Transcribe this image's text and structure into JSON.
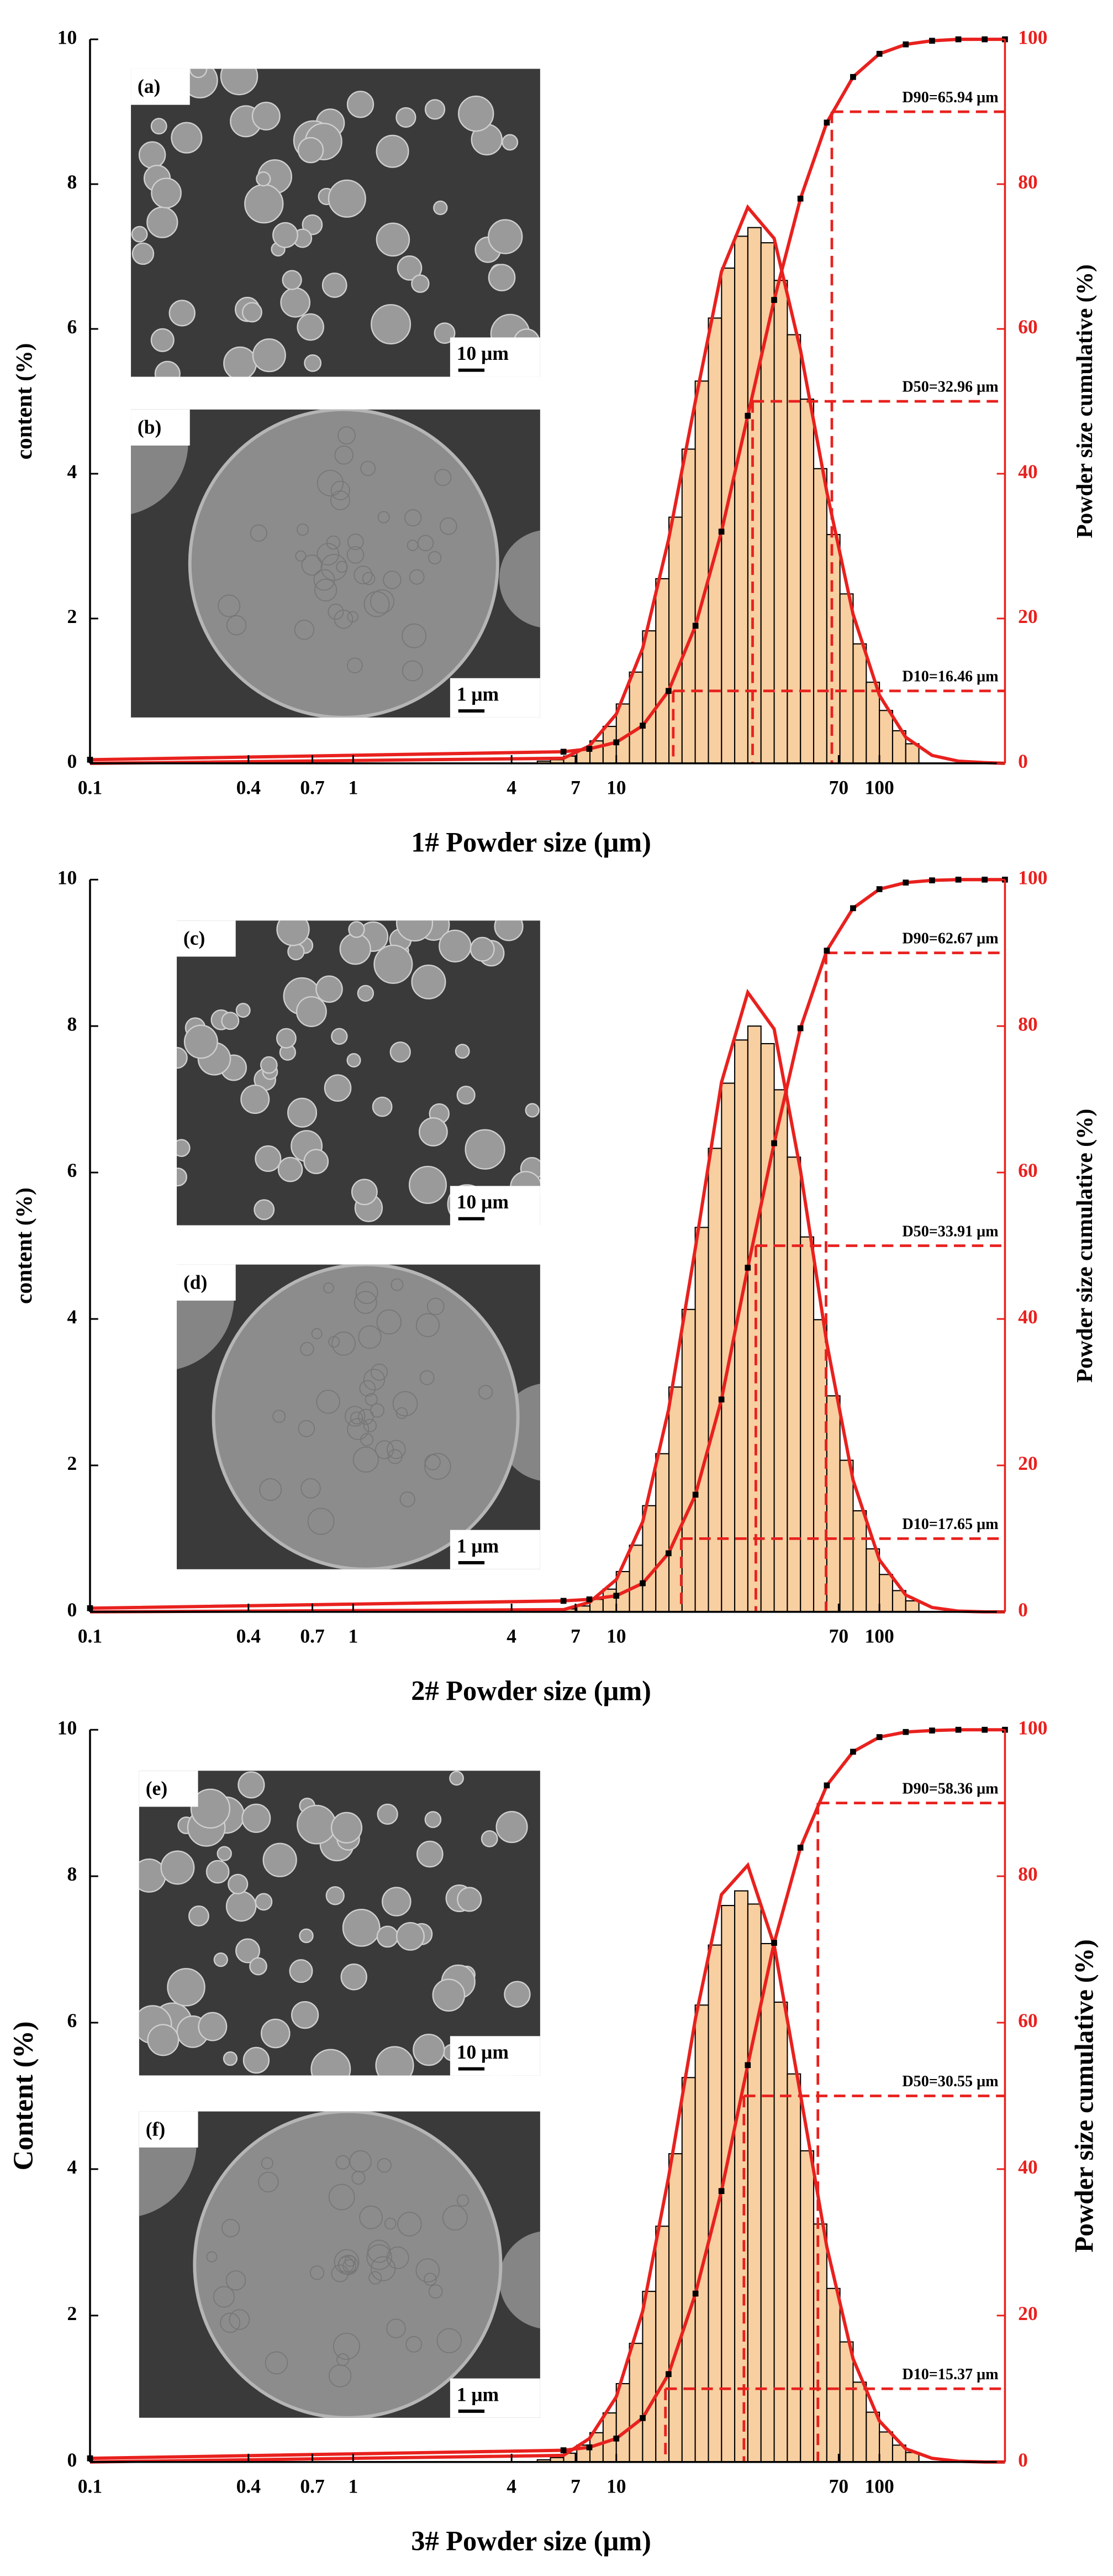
{
  "chart_data": [
    {
      "type": "histogram",
      "xlabel": "1# Powder size (μm)",
      "ylabel": "content (%)",
      "y2label": "Powder size cumulative (%)",
      "xscale": "log",
      "xlim": [
        0.1,
        300
      ],
      "xticks": [
        0.1,
        0.4,
        0.7,
        1,
        4,
        7,
        10,
        70,
        100
      ],
      "ylim": [
        0,
        10
      ],
      "yticks": [
        0,
        2,
        4,
        6,
        8,
        10
      ],
      "y2lim": [
        0,
        100
      ],
      "y2ticks": [
        0,
        20,
        40,
        60,
        80,
        100
      ],
      "color": "#f8cfa0",
      "edgecolor": "#000000",
      "bins": [
        5.01,
        5.62,
        6.31,
        7.08,
        7.94,
        8.91,
        10,
        11.22,
        12.59,
        14.13,
        15.85,
        17.78,
        19.95,
        22.39,
        25.12,
        28.18,
        31.62,
        35.48,
        39.81,
        44.67,
        50.12,
        56.23,
        63.1,
        70.79,
        79.43,
        89.13,
        100,
        112.2,
        125.89,
        141.25
      ],
      "counts": [
        0.03,
        0.05,
        0.1,
        0.18,
        0.31,
        0.51,
        0.82,
        1.26,
        1.83,
        2.55,
        3.4,
        4.34,
        5.28,
        6.15,
        6.84,
        7.28,
        7.4,
        7.19,
        6.67,
        5.92,
        5.03,
        4.07,
        3.16,
        2.34,
        1.65,
        1.12,
        0.73,
        0.45,
        0.27
      ],
      "series": [
        {
          "color": "#e8211e",
          "x": [
            0.1,
            6.3,
            7.9,
            10,
            12.6,
            15.8,
            20,
            25.1,
            31.6,
            39.8,
            50.1,
            63.1,
            79.4,
            100,
            125.9,
            158.5,
            199.5,
            251.2,
            300
          ],
          "values": [
            0,
            0.07,
            0.24,
            0.68,
            1.59,
            3.09,
            5.01,
            6.79,
            7.68,
            7.25,
            5.71,
            3.75,
            2.06,
            0.94,
            0.36,
            0.11,
            0.03,
            0.01,
            0
          ]
        },
        {
          "color": "#e8211e",
          "marker_color": "#000000",
          "axis": "y2",
          "x": [
            0.1,
            6.3,
            7.9,
            10,
            12.6,
            15.8,
            20,
            25.1,
            31.6,
            39.8,
            50.1,
            63.1,
            79.4,
            100,
            125.9,
            158.5,
            199.5,
            251.2,
            300
          ],
          "values": [
            0.5,
            1.6,
            2,
            2.9,
            5.2,
            10,
            19,
            32,
            48,
            64,
            78,
            88.5,
            94.8,
            98,
            99.3,
            99.8,
            100,
            100,
            100
          ]
        }
      ],
      "annotations": [
        {
          "text": "D90=65.94 μm",
          "x": 65.94,
          "y": 90
        },
        {
          "text": "D50=32.96 μm",
          "x": 32.96,
          "y": 50
        },
        {
          "text": "D10=16.46 μm",
          "x": 16.46,
          "y": 10
        }
      ],
      "insets": [
        {
          "label": "(a)",
          "scale": "10 μm"
        },
        {
          "label": "(b)",
          "scale": "1 μm"
        }
      ]
    },
    {
      "type": "histogram",
      "xlabel": "2# Powder size (μm)",
      "ylabel": "content (%)",
      "y2label": "Powder size cumulative (%)",
      "xscale": "log",
      "xlim": [
        0.1,
        300
      ],
      "xticks": [
        0.1,
        0.4,
        0.7,
        1,
        4,
        7,
        10,
        70,
        100
      ],
      "ylim": [
        0,
        10
      ],
      "yticks": [
        0,
        2,
        4,
        6,
        8,
        10
      ],
      "y2lim": [
        0,
        100
      ],
      "y2ticks": [
        0,
        20,
        40,
        60,
        80,
        100
      ],
      "color": "#f8cfa0",
      "edgecolor": "#000000",
      "bins": [
        5.01,
        5.62,
        6.31,
        7.08,
        7.94,
        8.91,
        10,
        11.22,
        12.59,
        14.13,
        15.85,
        17.78,
        19.95,
        22.39,
        25.12,
        28.18,
        31.62,
        35.48,
        39.81,
        44.67,
        50.12,
        56.23,
        63.1,
        70.79,
        79.43,
        89.13,
        100,
        112.2,
        125.89,
        141.25
      ],
      "counts": [
        0.01,
        0.02,
        0.04,
        0.08,
        0.17,
        0.31,
        0.55,
        0.91,
        1.45,
        2.16,
        3.07,
        4.13,
        5.25,
        6.33,
        7.22,
        7.81,
        8,
        7.76,
        7.13,
        6.21,
        5.12,
        3.99,
        2.95,
        2.07,
        1.38,
        0.86,
        0.51,
        0.29,
        0.15
      ],
      "series": [
        {
          "color": "#e8211e",
          "x": [
            0.1,
            6.3,
            7.9,
            10,
            12.6,
            15.8,
            20,
            25.1,
            31.6,
            39.8,
            50.1,
            63.1,
            79.4,
            100,
            125.9,
            158.5,
            199.5,
            251.2,
            300
          ],
          "values": [
            0,
            0.03,
            0.13,
            0.44,
            1.23,
            2.76,
            4.98,
            7.23,
            8.46,
            7.96,
            6.03,
            3.67,
            1.8,
            0.71,
            0.23,
            0.06,
            0.01,
            0,
            0
          ]
        },
        {
          "color": "#e8211e",
          "marker_color": "#000000",
          "axis": "y2",
          "x": [
            0.1,
            6.3,
            7.9,
            10,
            12.6,
            15.8,
            20,
            25.1,
            31.6,
            39.8,
            50.1,
            63.1,
            79.4,
            100,
            125.9,
            158.5,
            199.5,
            251.2,
            300
          ],
          "values": [
            0.5,
            1.5,
            1.7,
            2.2,
            3.9,
            8,
            16,
            29,
            47,
            64,
            79.7,
            90.3,
            96.1,
            98.7,
            99.6,
            99.9,
            100,
            100,
            100
          ]
        }
      ],
      "annotations": [
        {
          "text": "D90=62.67 μm",
          "x": 62.67,
          "y": 90
        },
        {
          "text": "D50=33.91 μm",
          "x": 33.91,
          "y": 50
        },
        {
          "text": "D10=17.65 μm",
          "x": 17.65,
          "y": 10
        }
      ],
      "insets": [
        {
          "label": "(c)",
          "scale": "10 μm"
        },
        {
          "label": "(d)",
          "scale": "1 μm"
        }
      ]
    },
    {
      "type": "histogram",
      "xlabel": "3# Powder size (μm)",
      "ylabel": "Content (%)",
      "y2label": "Powder size cumulative (%)",
      "xscale": "log",
      "xlim": [
        0.1,
        300
      ],
      "xticks": [
        0.1,
        0.4,
        0.7,
        1,
        4,
        7,
        10,
        70,
        100
      ],
      "ylim": [
        0,
        10
      ],
      "yticks": [
        0,
        2,
        4,
        6,
        8,
        10
      ],
      "y2lim": [
        0,
        100
      ],
      "y2ticks": [
        0,
        20,
        40,
        60,
        80,
        100
      ],
      "color": "#f8cfa0",
      "edgecolor": "#000000",
      "bins": [
        5.01,
        5.62,
        6.31,
        7.08,
        7.94,
        8.91,
        10,
        11.22,
        12.59,
        14.13,
        15.85,
        17.78,
        19.95,
        22.39,
        25.12,
        28.18,
        31.62,
        35.48,
        39.81,
        44.67,
        50.12,
        56.23,
        63.1,
        70.79,
        79.43,
        89.13,
        100,
        112.2,
        125.89,
        141.25
      ],
      "counts": [
        0.03,
        0.06,
        0.12,
        0.23,
        0.4,
        0.67,
        1.07,
        1.62,
        2.33,
        3.22,
        4.21,
        5.25,
        6.24,
        7.06,
        7.6,
        7.8,
        7.62,
        7.08,
        6.28,
        5.3,
        4.25,
        3.25,
        2.37,
        1.64,
        1.09,
        0.68,
        0.41,
        0.23,
        0.13
      ],
      "series": [
        {
          "color": "#e8211e",
          "x": [
            0.1,
            6.3,
            7.9,
            10,
            12.6,
            15.8,
            20,
            25.1,
            31.6,
            39.8,
            50.1,
            63.1,
            79.4,
            100,
            125.9,
            158.5,
            199.5,
            251.2,
            300
          ],
          "values": [
            0,
            0.09,
            0.32,
            0.89,
            2.06,
            3.89,
            6.06,
            7.75,
            8.15,
            7.06,
            5.02,
            2.94,
            1.41,
            0.56,
            0.18,
            0.05,
            0.01,
            0,
            0
          ]
        },
        {
          "color": "#e8211e",
          "marker_color": "#000000",
          "axis": "y2",
          "x": [
            0.1,
            6.3,
            7.9,
            10,
            12.6,
            15.8,
            20,
            25.1,
            31.6,
            39.8,
            50.1,
            63.1,
            79.4,
            100,
            125.9,
            158.5,
            199.5,
            251.2,
            300
          ],
          "values": [
            0.5,
            1.6,
            2,
            3.2,
            6,
            12,
            23,
            37,
            54.2,
            70.9,
            83.9,
            92.4,
            97,
            99,
            99.7,
            99.9,
            100,
            100,
            100
          ]
        }
      ],
      "annotations": [
        {
          "text": "D90=58.36 μm",
          "x": 58.36,
          "y": 90
        },
        {
          "text": "D50=30.55 μm",
          "x": 30.55,
          "y": 50
        },
        {
          "text": "D10=15.37 μm",
          "x": 15.37,
          "y": 10
        }
      ],
      "insets": [
        {
          "label": "(e)",
          "scale": "10 μm"
        },
        {
          "label": "(f)",
          "scale": "1 μm"
        }
      ]
    }
  ]
}
